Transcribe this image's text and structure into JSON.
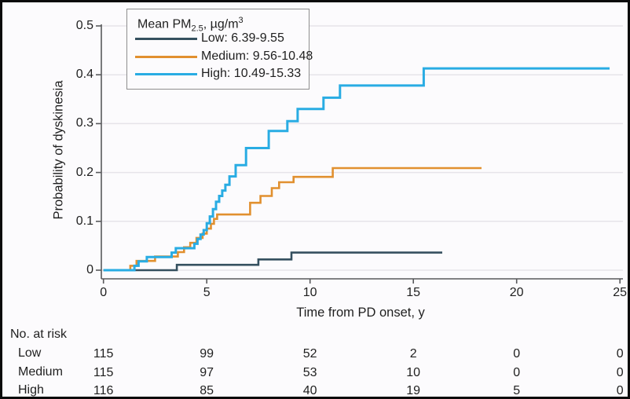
{
  "chart_data": {
    "type": "line",
    "subtype": "kaplan-meier-step-curves",
    "title": "",
    "xlabel": "Time from PD onset, y",
    "ylabel": "Probability of dyskinesia",
    "xlim": [
      0,
      25
    ],
    "ylim": [
      0,
      0.5
    ],
    "xtick_values": [
      0,
      5,
      10,
      15,
      20,
      25
    ],
    "xtick_labels": [
      "0",
      "5",
      "10",
      "15",
      "20",
      "25"
    ],
    "ytick_values": [
      0,
      0.1,
      0.2,
      0.3,
      0.4,
      0.5
    ],
    "ytick_labels": [
      "0",
      "0.1",
      "0.2",
      "0.3",
      "0.4",
      "0.5"
    ],
    "grid": true,
    "legend_position": "top-left-box",
    "colors": {
      "grid": "#e6e4e9",
      "axis": "#58595b",
      "text": "#1f1f1f",
      "low": "#35505f",
      "medium": "#e1902f",
      "high": "#29ace3"
    },
    "series": [
      {
        "name": "Low",
        "label": "Low: 6.39-9.55",
        "color": "#35505f",
        "end_time": 16.4,
        "steps": [
          [
            0,
            0
          ],
          [
            3.55,
            0.011
          ],
          [
            7.5,
            0.022
          ],
          [
            9.1,
            0.036
          ]
        ]
      },
      {
        "name": "Medium",
        "label": "Medium: 9.56-10.48",
        "color": "#e1902f",
        "end_time": 18.3,
        "steps": [
          [
            0,
            0
          ],
          [
            1.3,
            0.009
          ],
          [
            1.6,
            0.019
          ],
          [
            2.5,
            0.028
          ],
          [
            3.6,
            0.037
          ],
          [
            3.9,
            0.047
          ],
          [
            4.2,
            0.056
          ],
          [
            4.5,
            0.066
          ],
          [
            4.8,
            0.075
          ],
          [
            5.0,
            0.085
          ],
          [
            5.2,
            0.095
          ],
          [
            5.35,
            0.105
          ],
          [
            5.5,
            0.114
          ],
          [
            7.1,
            0.138
          ],
          [
            7.6,
            0.152
          ],
          [
            8.15,
            0.168
          ],
          [
            8.5,
            0.18
          ],
          [
            9.2,
            0.191
          ],
          [
            11.1,
            0.209
          ]
        ]
      },
      {
        "name": "High",
        "label": "High: 10.49-15.33",
        "color": "#29ace3",
        "end_time": 24.5,
        "steps": [
          [
            0,
            0
          ],
          [
            1.5,
            0.009
          ],
          [
            1.7,
            0.018
          ],
          [
            2.1,
            0.027
          ],
          [
            3.3,
            0.036
          ],
          [
            3.5,
            0.045
          ],
          [
            4.4,
            0.054
          ],
          [
            4.55,
            0.064
          ],
          [
            4.7,
            0.073
          ],
          [
            4.85,
            0.082
          ],
          [
            5.0,
            0.096
          ],
          [
            5.15,
            0.11
          ],
          [
            5.3,
            0.125
          ],
          [
            5.45,
            0.14
          ],
          [
            5.6,
            0.152
          ],
          [
            5.75,
            0.163
          ],
          [
            5.9,
            0.175
          ],
          [
            6.1,
            0.192
          ],
          [
            6.4,
            0.215
          ],
          [
            6.9,
            0.25
          ],
          [
            8.0,
            0.285
          ],
          [
            8.9,
            0.305
          ],
          [
            9.4,
            0.33
          ],
          [
            10.65,
            0.353
          ],
          [
            11.45,
            0.378
          ],
          [
            15.5,
            0.413
          ]
        ]
      }
    ],
    "risk_table": {
      "header": "No. at risk",
      "columns": [
        0,
        5,
        10,
        15,
        20,
        25
      ],
      "rows": [
        {
          "label": "Low",
          "values": [
            "115",
            "99",
            "52",
            "2",
            "0",
            "0"
          ]
        },
        {
          "label": "Medium",
          "values": [
            "115",
            "97",
            "53",
            "10",
            "0",
            "0"
          ]
        },
        {
          "label": "High",
          "values": [
            "116",
            "85",
            "40",
            "19",
            "5",
            "0"
          ]
        }
      ]
    }
  },
  "legend": {
    "title_main": "Mean PM",
    "title_sub": "2.5",
    "title_mid": ", µg/m",
    "title_sup": "3"
  }
}
